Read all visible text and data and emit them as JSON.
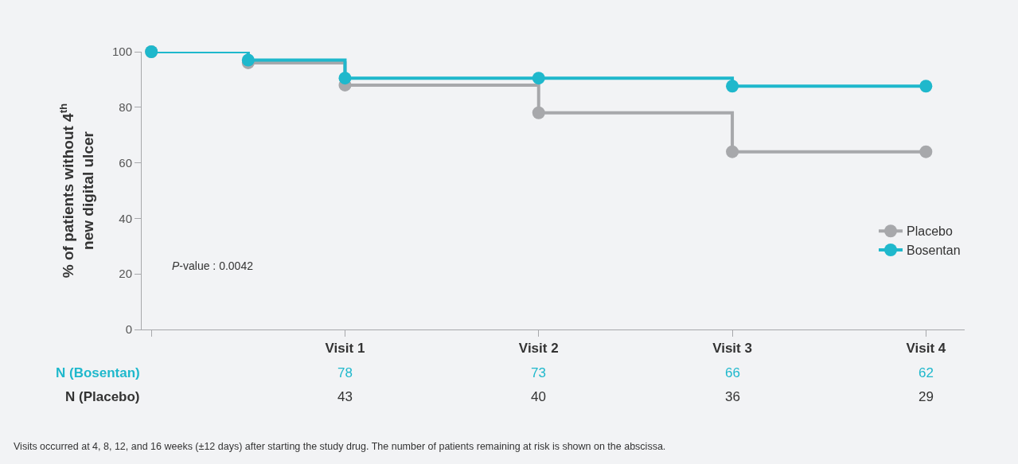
{
  "chart_data": {
    "type": "step",
    "ylabel": "% of patients without 4$^{th}$\nnew digital ulcer",
    "categories": [
      null,
      null,
      "Visit 1",
      null,
      "Visit 2",
      null,
      "Visit 3",
      null,
      "Visit 4"
    ],
    "ylim": [
      0,
      100
    ],
    "yticks": [
      0,
      20,
      40,
      60,
      80,
      100
    ],
    "grid": false,
    "legend": "right",
    "marker": "circle",
    "line_style": "solid",
    "series": [
      {
        "name": "Placebo",
        "color": "#a7a8ab",
        "values": [
          100,
          96,
          88,
          null,
          78,
          null,
          64,
          null,
          64
        ]
      },
      {
        "name": "Bosentan",
        "color": "#1fb8cc",
        "values": [
          100,
          97,
          90.5,
          null,
          90.5,
          null,
          87.6,
          null,
          87.6
        ]
      }
    ],
    "annotations": [
      "P-value : 0.0042",
      "N (Bosentan)",
      "78",
      "73",
      "66",
      "62",
      "N (Placebo)",
      "43",
      "40",
      "36",
      "29",
      "Visits occurred at 4, 8, 12, and 16 weeks (±12 days) after starting the study drug. The number of patients remaining at risk is shown on the abscissa."
    ]
  }
}
